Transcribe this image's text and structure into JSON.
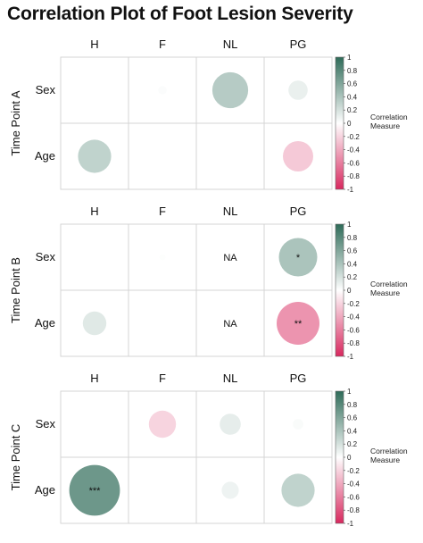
{
  "title": "Correlation Plot of Foot Lesion Severity",
  "legend": {
    "title_line1": "Correlation",
    "title_line2": "Measure",
    "ticks": [
      "1",
      "0.8",
      "0.6",
      "0.4",
      "0.2",
      "0",
      "-0.2",
      "-0.4",
      "-0.6",
      "-0.8",
      "-1"
    ],
    "range": [
      -1,
      1
    ],
    "colors": {
      "positive": "#2e6b58",
      "zero": "#ffffff",
      "negative": "#d8285e"
    }
  },
  "chart_data": [
    {
      "type": "heatmap",
      "panel_label": "Time Point A",
      "columns": [
        "H",
        "F",
        "NL",
        "PG"
      ],
      "rows": [
        "Sex",
        "Age"
      ],
      "values": [
        [
          0,
          0.02,
          0.35,
          0.1
        ],
        [
          0.3,
          0,
          0,
          -0.25
        ]
      ],
      "annotations": [
        [
          "",
          "",
          "",
          ""
        ],
        [
          "",
          "",
          "",
          ""
        ]
      ]
    },
    {
      "type": "heatmap",
      "panel_label": "Time Point B",
      "columns": [
        "H",
        "F",
        "NL",
        "PG"
      ],
      "rows": [
        "Sex",
        "Age"
      ],
      "values": [
        [
          0,
          0.01,
          null,
          0.4
        ],
        [
          0.15,
          0,
          null,
          -0.5
        ]
      ],
      "annotations": [
        [
          "",
          "",
          "NA",
          "*"
        ],
        [
          "",
          "",
          "NA",
          "**"
        ]
      ]
    },
    {
      "type": "heatmap",
      "panel_label": "Time Point C",
      "columns": [
        "H",
        "F",
        "NL",
        "PG"
      ],
      "rows": [
        "Sex",
        "Age"
      ],
      "values": [
        [
          0,
          -0.2,
          0.12,
          0.03
        ],
        [
          0.7,
          0,
          0.08,
          0.3
        ]
      ],
      "annotations": [
        [
          "",
          "",
          "",
          ""
        ],
        [
          "***",
          "",
          "",
          ""
        ]
      ]
    }
  ]
}
